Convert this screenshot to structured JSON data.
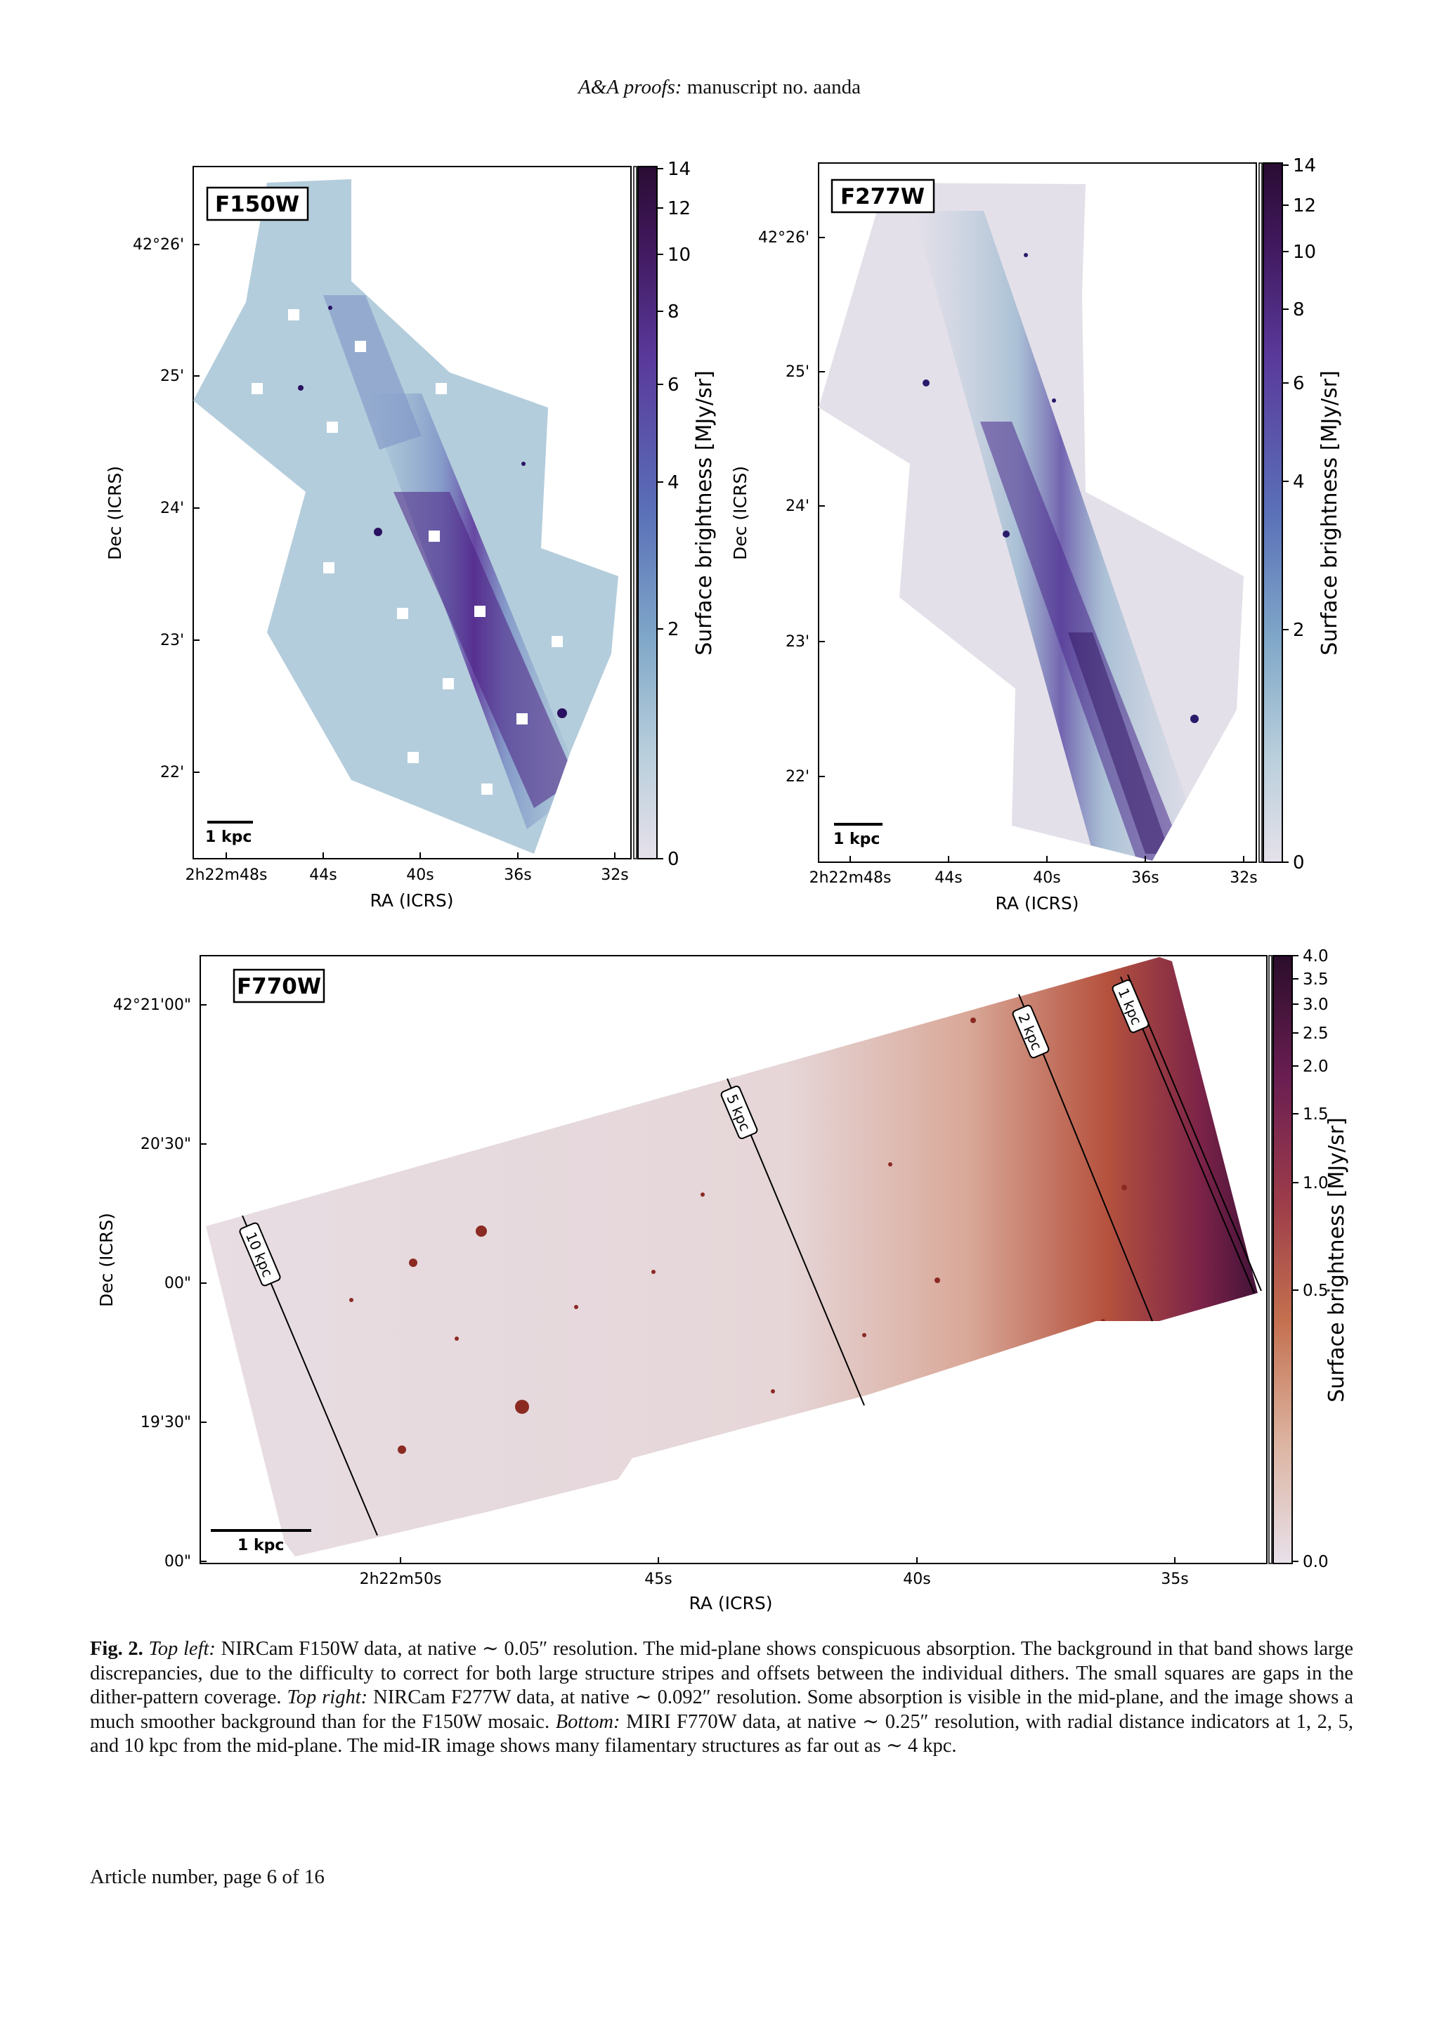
{
  "header": {
    "journal": "A&A proofs:",
    "manuscript": "manuscript no. aanda"
  },
  "panels": [
    {
      "filter": "F150W",
      "scalebar": "1 kpc",
      "xlabel": "RA (ICRS)",
      "ylabel": "Dec (ICRS)",
      "xticks": [
        "2h22m48s",
        "44s",
        "40s",
        "36s",
        "32s"
      ],
      "yticks": [
        "42°26'",
        "25'",
        "24'",
        "23'",
        "22'"
      ],
      "colorbar": {
        "label": "Surface brightness [MJy/sr]",
        "ticks": [
          "14",
          "12",
          "10",
          "8",
          "6",
          "4",
          "2",
          "0"
        ]
      }
    },
    {
      "filter": "F277W",
      "scalebar": "1 kpc",
      "xlabel": "RA (ICRS)",
      "ylabel": "Dec (ICRS)",
      "xticks": [
        "2h22m48s",
        "44s",
        "40s",
        "36s",
        "32s"
      ],
      "yticks": [
        "42°26'",
        "25'",
        "24'",
        "23'",
        "22'"
      ],
      "colorbar": {
        "label": "Surface brightness [MJy/sr]",
        "ticks": [
          "14",
          "12",
          "10",
          "8",
          "6",
          "4",
          "2",
          "0"
        ]
      }
    },
    {
      "filter": "F770W",
      "scalebar": "1 kpc",
      "xlabel": "RA (ICRS)",
      "ylabel": "Dec (ICRS)",
      "xticks": [
        "2h22m50s",
        "45s",
        "40s",
        "35s"
      ],
      "yticks": [
        "42°21'00\"",
        "20'30\"",
        "00\"",
        "19'30\"",
        "00\""
      ],
      "distance_labels": [
        "10 kpc",
        "5 kpc",
        "2 kpc",
        "1 kpc"
      ],
      "colorbar": {
        "label": "Surface brightness [MJy/sr]",
        "ticks": [
          "4.0",
          "3.5",
          "3.0",
          "2.5",
          "2.0",
          "1.5",
          "1.0",
          "0.5",
          "0.0"
        ]
      }
    }
  ],
  "caption": {
    "fig_label": "Fig. 2.",
    "p1_label": "Top left:",
    "p1_text": " NIRCam F150W data, at native ∼ 0.05″ resolution. The mid-plane shows conspicuous absorption. The background in that band shows large discrepancies, due to the difficulty to correct for both large structure stripes and offsets between the individual dithers. The small squares are gaps in the dither-pattern coverage. ",
    "p2_label": "Top right:",
    "p2_text": " NIRCam F277W data, at native ∼ 0.092″ resolution. Some absorption is visible in the mid-plane, and the image shows a much smoother background than for the F150W mosaic. ",
    "p3_label": "Bottom:",
    "p3_text": " MIRI F770W data, at native ∼ 0.25″ resolution, with radial distance indicators at 1, 2, 5, and 10 kpc from the mid-plane. The mid-IR image shows many filamentary structures as far out as ∼ 4 kpc."
  },
  "footer": "Article number, page 6 of 16"
}
